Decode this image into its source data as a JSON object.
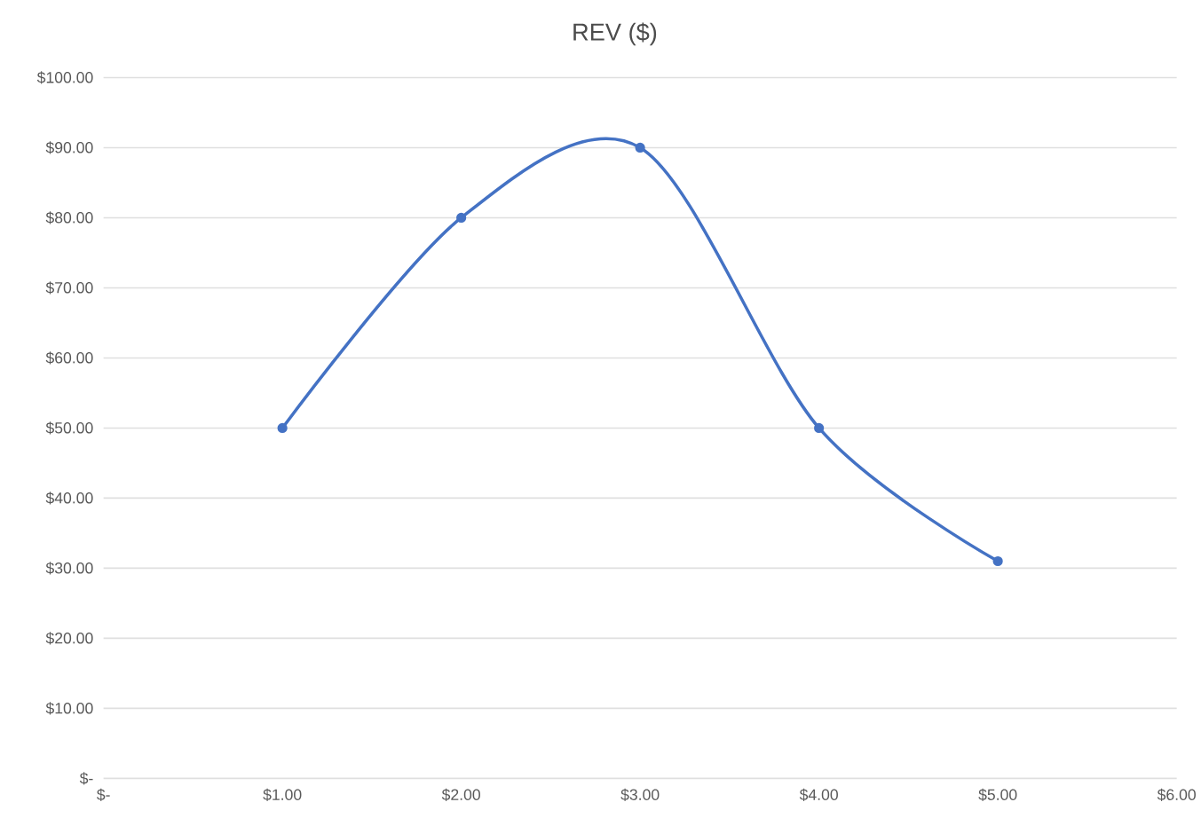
{
  "chart_data": {
    "type": "line",
    "title": "REV ($)",
    "x": [
      1,
      2,
      3,
      4,
      5
    ],
    "series": [
      {
        "color": "#4472c4",
        "values": [
          50,
          80,
          90,
          50,
          31
        ]
      }
    ],
    "xlim": [
      0,
      6
    ],
    "xticks": [
      {
        "value": 0,
        "label": "$-"
      },
      {
        "value": 1,
        "label": "$1.00"
      },
      {
        "value": 2,
        "label": "$2.00"
      },
      {
        "value": 3,
        "label": "$3.00"
      },
      {
        "value": 4,
        "label": "$4.00"
      },
      {
        "value": 5,
        "label": "$5.00"
      },
      {
        "value": 6,
        "label": "$6.00"
      }
    ],
    "ylim": [
      0,
      100
    ],
    "yticks": [
      {
        "value": 0,
        "label": "$-"
      },
      {
        "value": 10,
        "label": "$10.00"
      },
      {
        "value": 20,
        "label": "$20.00"
      },
      {
        "value": 30,
        "label": "$30.00"
      },
      {
        "value": 40,
        "label": "$40.00"
      },
      {
        "value": 50,
        "label": "$50.00"
      },
      {
        "value": 60,
        "label": "$60.00"
      },
      {
        "value": 70,
        "label": "$70.00"
      },
      {
        "value": 80,
        "label": "$80.00"
      },
      {
        "value": 90,
        "label": "$90.00"
      },
      {
        "value": 100,
        "label": "$100.00"
      }
    ],
    "grid": "y",
    "marker": "circle",
    "line_style": "solid"
  }
}
